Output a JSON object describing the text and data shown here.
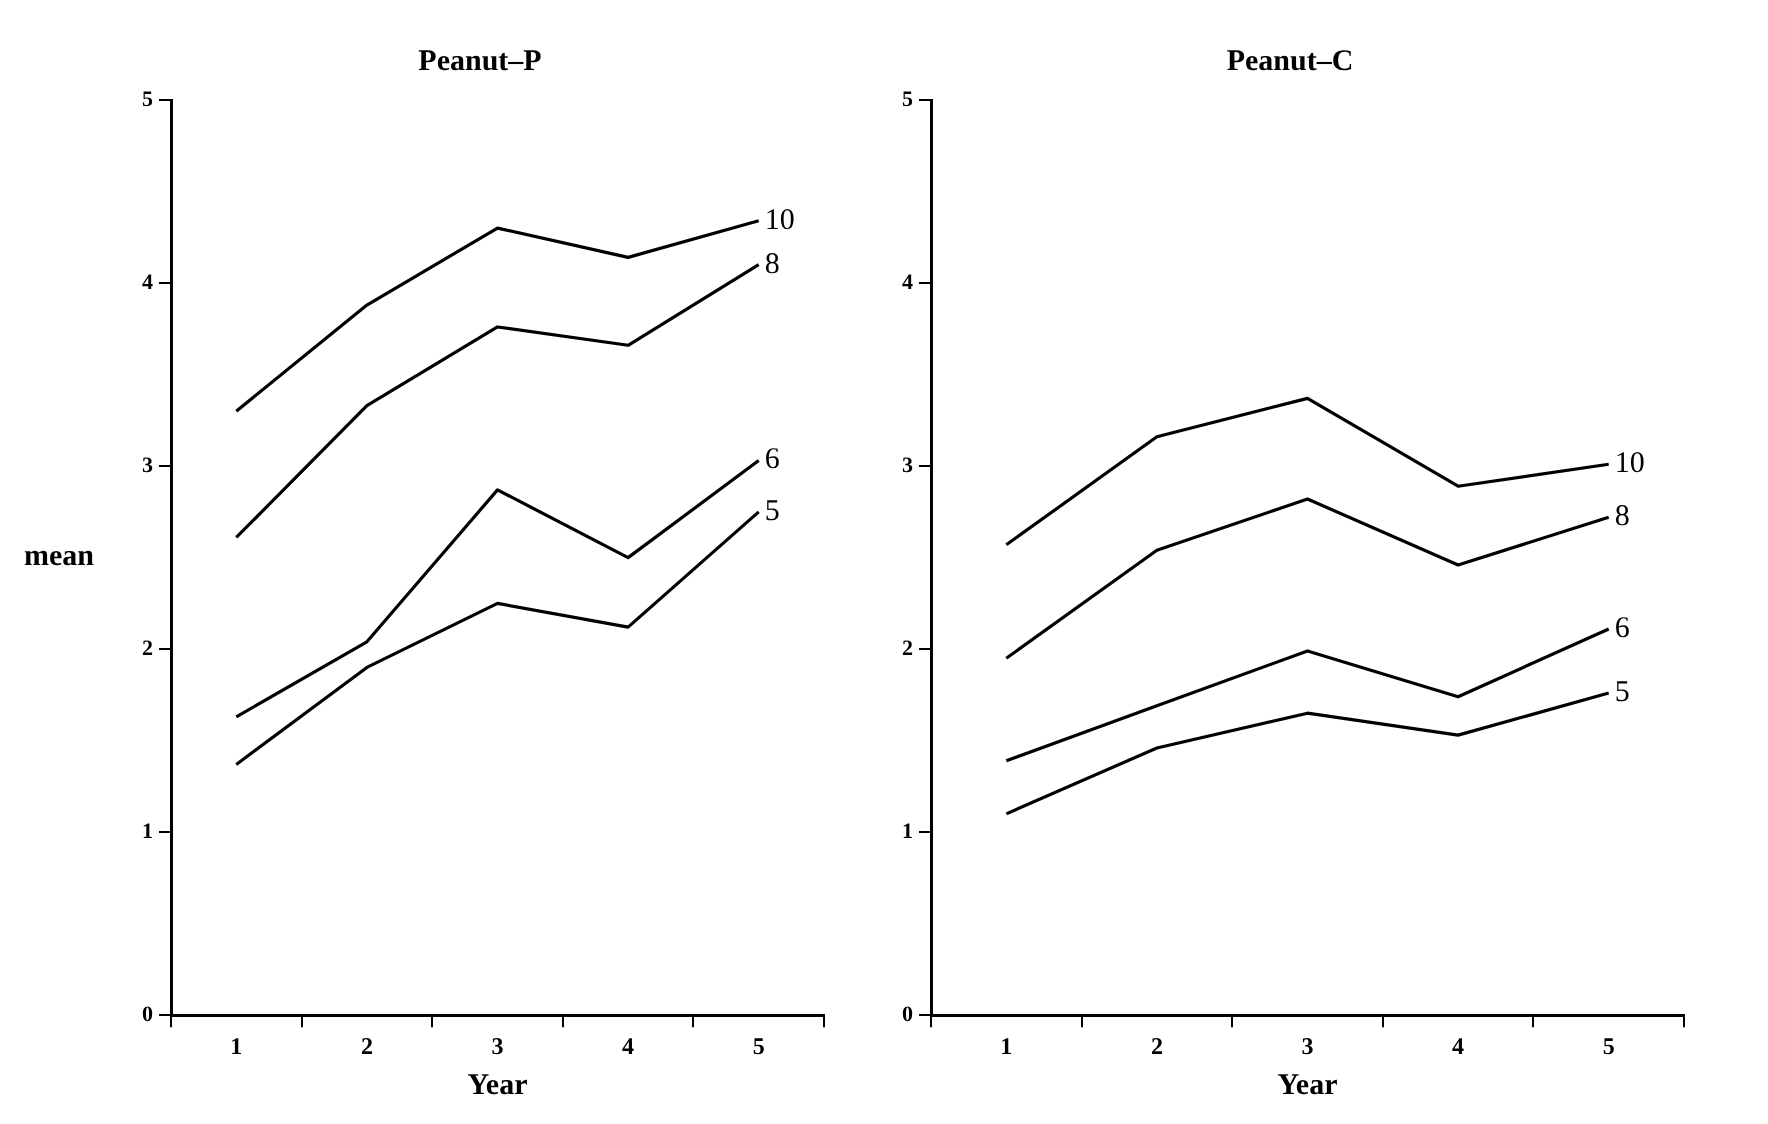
{
  "chart_data": [
    {
      "type": "line",
      "title": "Peanut–P",
      "xlabel": "Year",
      "ylabel": "mean",
      "categories": [
        "1",
        "2",
        "3",
        "4",
        "5"
      ],
      "ylim": [
        0,
        5
      ],
      "yticks": [
        0,
        1,
        2,
        3,
        4,
        5
      ],
      "grid": false,
      "legend": false,
      "series": [
        {
          "name": "10",
          "color": "#000000",
          "values": [
            3.3,
            3.88,
            4.3,
            4.14,
            4.34
          ]
        },
        {
          "name": "8",
          "color": "#000000",
          "values": [
            2.61,
            3.33,
            3.76,
            3.66,
            4.1
          ]
        },
        {
          "name": "6",
          "color": "#000000",
          "values": [
            1.63,
            2.04,
            2.87,
            2.5,
            3.03
          ]
        },
        {
          "name": "5",
          "color": "#000000",
          "values": [
            1.37,
            1.9,
            2.25,
            2.12,
            2.75
          ]
        }
      ]
    },
    {
      "type": "line",
      "title": "Peanut–C",
      "xlabel": "Year",
      "categories": [
        "1",
        "2",
        "3",
        "4",
        "5"
      ],
      "ylim": [
        0,
        5
      ],
      "yticks": [
        0,
        1,
        2,
        3,
        4,
        5
      ],
      "grid": false,
      "legend": false,
      "series": [
        {
          "name": "10",
          "color": "#000000",
          "values": [
            2.57,
            3.16,
            3.37,
            2.89,
            3.01
          ]
        },
        {
          "name": "8",
          "color": "#000000",
          "values": [
            1.95,
            2.54,
            2.82,
            2.46,
            2.72
          ]
        },
        {
          "name": "6",
          "color": "#000000",
          "values": [
            1.39,
            1.69,
            1.99,
            1.74,
            2.11
          ]
        },
        {
          "name": "5",
          "color": "#000000",
          "values": [
            1.1,
            1.46,
            1.65,
            1.53,
            1.76
          ]
        }
      ]
    }
  ]
}
